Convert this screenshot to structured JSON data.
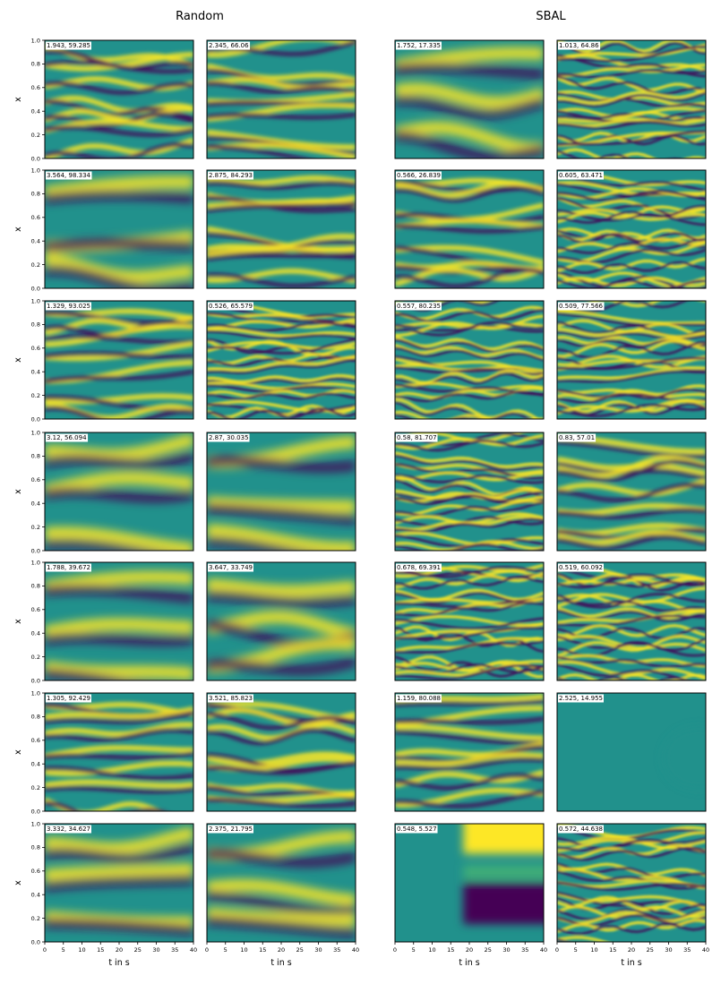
{
  "columns": [
    {
      "title": "Random"
    },
    {
      "title": "SBAL"
    }
  ],
  "axes": {
    "xlabel": "t in s",
    "ylabel": "x",
    "xlim": [
      0,
      40
    ],
    "ylim": [
      0,
      1
    ],
    "xticks": [
      "0",
      "5",
      "10",
      "15",
      "20",
      "25",
      "30",
      "35",
      "40"
    ],
    "yticks": [
      "0.0",
      "0.2",
      "0.4",
      "0.6",
      "0.8",
      "1.0"
    ]
  },
  "colormap": {
    "name": "viridis",
    "stops": [
      "#440154",
      "#3b528b",
      "#21918c",
      "#5ec962",
      "#fde725"
    ]
  },
  "chart_data": {
    "type": "heatmap",
    "description": "Grid of 7 rows x 4 panels of spatio-temporal solution fields; each panel labelled with its two parameter values",
    "rows": [
      {
        "random": [
          "1.943, 59.285",
          "2.345, 66.06"
        ],
        "sbal": [
          "1.752, 17.335",
          "1.013, 64.86"
        ]
      },
      {
        "random": [
          "3.564, 98.334",
          "2.875, 84.293"
        ],
        "sbal": [
          "0.566, 26.839",
          "0.605, 63.471"
        ]
      },
      {
        "random": [
          "1.329, 93.025",
          "0.526, 65.579"
        ],
        "sbal": [
          "0.557, 80.235",
          "0.509, 77.566"
        ]
      },
      {
        "random": [
          "3.12, 56.094",
          "2.87, 30.035"
        ],
        "sbal": [
          "0.58, 81.707",
          "0.83, 57.01"
        ]
      },
      {
        "random": [
          "1.788, 39.672",
          "3.647, 33.749"
        ],
        "sbal": [
          "0.678, 69.391",
          "0.519, 60.092"
        ]
      },
      {
        "random": [
          "1.305, 92.429",
          "3.521, 85.823"
        ],
        "sbal": [
          "1.159, 80.088",
          "2.525, 14.955"
        ]
      },
      {
        "random": [
          "3.332, 34.627",
          "2.375, 21.795"
        ],
        "sbal": [
          "0.548, 5.527",
          "0.572, 44.638"
        ]
      }
    ]
  }
}
